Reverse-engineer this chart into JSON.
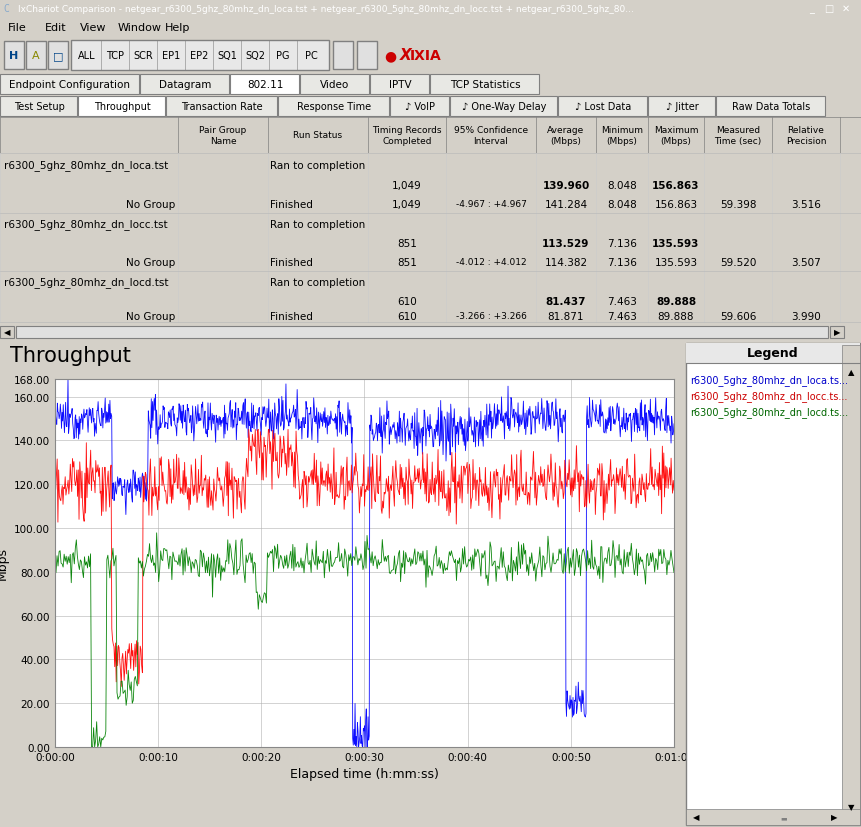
{
  "title_bar": "IxChariot Comparison - netgear_r6300_5ghz_80mhz_dn_loca.tst + netgear_r6300_5ghz_80mhz_dn_locc.tst + netgear_r6300_5ghz_80...",
  "menu_items": [
    "File",
    "Edit",
    "View",
    "Window",
    "Help"
  ],
  "tab_buttons": [
    "ALL",
    "TCP",
    "SCR",
    "EP1",
    "EP2",
    "SQ1",
    "SQ2",
    "PG",
    "PC"
  ],
  "nav_tabs_row1": [
    "Endpoint Configuration",
    "Datagram",
    "802.11",
    "Video",
    "IPTV",
    "TCP Statistics"
  ],
  "nav_tabs_row2": [
    "Test Setup",
    "Throughput",
    "Transaction Rate",
    "Response Time",
    "♪ VoIP",
    "♪ One-Way Delay",
    "♪ Lost Data",
    "♪ Jitter",
    "Raw Data Totals"
  ],
  "plot_title": "Throughput",
  "ylabel": "Mbps",
  "xlabel": "Elapsed time (h:mm:ss)",
  "ytick_labels": [
    "0.00",
    "20.00",
    "40.00",
    "60.00",
    "80.00",
    "100.00",
    "120.00",
    "140.00",
    "160.00",
    "168.00"
  ],
  "ytick_vals": [
    0,
    20,
    40,
    60,
    80,
    100,
    120,
    140,
    160,
    168
  ],
  "ymax": 168.0,
  "duration_sec": 60,
  "bg_color": "#d4d0c8",
  "plot_bg": "#ffffff",
  "grid_color": "#b0b0b0",
  "line_colors": [
    "#0000ff",
    "#ff0000",
    "#008000"
  ],
  "legend_labels": [
    "r6300_5ghz_80mhz_dn_loca.ts...",
    "r6300_5ghz_80mhz_dn_locc.ts...",
    "r6300_5ghz_80mhz_dn_locd.ts..."
  ],
  "legend_text_colors": [
    "#0000cc",
    "#cc0000",
    "#006600"
  ],
  "blue_base": 150.0,
  "red_base": 120.0,
  "green_base": 85.0,
  "table_bg": "#ffffff",
  "table_header_bg": "#e8e8e8",
  "row1_name": "r6300_5ghz_80mhz_dn_loca.tst",
  "row2_name": "r6300_5ghz_80mhz_dn_locc.tst",
  "row3_name": "r6300_5ghz_80mhz_dn_locd.tst"
}
